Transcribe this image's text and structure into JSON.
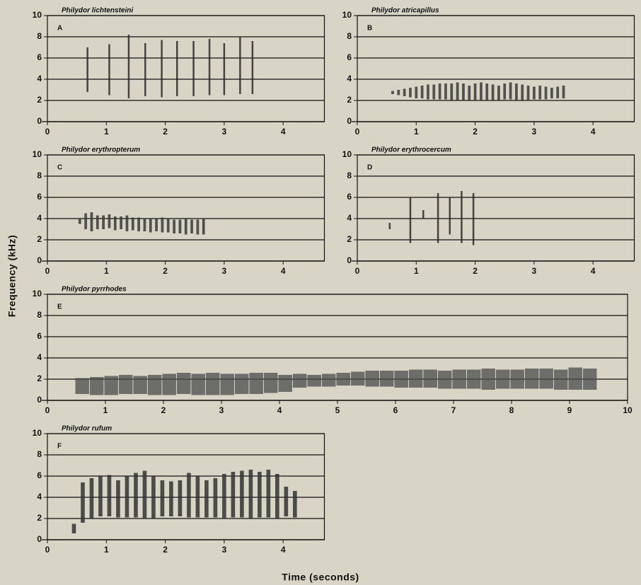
{
  "y_label": "Frequency (kHz)",
  "x_label": "Time (seconds)",
  "chart_data": [
    {
      "type": "spectrogram",
      "title": "Philydor lichtensteini",
      "label": "A",
      "color": "#2a2a2a",
      "x": [
        0.68,
        1.05,
        1.38,
        1.66,
        1.94,
        2.2,
        2.48,
        2.75,
        3.0,
        3.27,
        3.48
      ],
      "low": [
        2.8,
        2.5,
        2.2,
        2.4,
        2.3,
        2.4,
        2.4,
        2.5,
        2.5,
        2.6,
        2.6
      ],
      "high": [
        7.0,
        7.3,
        8.2,
        7.4,
        7.7,
        7.6,
        7.6,
        7.8,
        7.4,
        8.0,
        7.6
      ],
      "xlim": [
        0,
        4.7
      ],
      "ylim": [
        0,
        10
      ],
      "xticks": [
        0,
        1,
        2,
        3,
        4
      ],
      "yticks": [
        0,
        2,
        4,
        6,
        8,
        10
      ],
      "grid": true
    },
    {
      "type": "spectrogram",
      "title": "Philydor atricapillus",
      "label": "B",
      "color": "#3a3a3a",
      "x": [
        0.6,
        0.7,
        0.8,
        0.9,
        1.0,
        1.1,
        1.2,
        1.3,
        1.4,
        1.5,
        1.6,
        1.7,
        1.8,
        1.9,
        2.0,
        2.1,
        2.2,
        2.3,
        2.4,
        2.5,
        2.6,
        2.7,
        2.8,
        2.9,
        3.0,
        3.1,
        3.2,
        3.3,
        3.4,
        3.5
      ],
      "low": [
        2.6,
        2.5,
        2.4,
        2.3,
        2.2,
        2.2,
        2.1,
        2.1,
        2.1,
        2.1,
        2.0,
        2.0,
        2.0,
        2.0,
        2.0,
        2.0,
        2.0,
        2.0,
        2.0,
        2.1,
        2.1,
        2.0,
        2.0,
        2.0,
        2.1,
        2.1,
        2.1,
        2.2,
        2.2,
        2.2
      ],
      "high": [
        2.9,
        3.0,
        3.1,
        3.2,
        3.3,
        3.4,
        3.5,
        3.5,
        3.6,
        3.6,
        3.6,
        3.7,
        3.6,
        3.4,
        3.6,
        3.7,
        3.6,
        3.5,
        3.4,
        3.6,
        3.7,
        3.6,
        3.5,
        3.4,
        3.3,
        3.4,
        3.3,
        3.2,
        3.3,
        3.4
      ],
      "xlim": [
        0,
        4.7
      ],
      "ylim": [
        0,
        10
      ],
      "xticks": [
        0,
        1,
        2,
        3,
        4
      ],
      "yticks": [
        0,
        2,
        4,
        6,
        8,
        10
      ],
      "grid": true
    },
    {
      "type": "spectrogram",
      "title": "Philydor erythropterum",
      "label": "C",
      "color": "#3a3a3a",
      "x": [
        0.55,
        0.65,
        0.75,
        0.85,
        0.95,
        1.05,
        1.15,
        1.25,
        1.35,
        1.45,
        1.55,
        1.65,
        1.75,
        1.85,
        1.95,
        2.05,
        2.15,
        2.25,
        2.35,
        2.45,
        2.55,
        2.65
      ],
      "low": [
        3.5,
        3.0,
        2.8,
        3.0,
        3.0,
        3.1,
        2.9,
        3.0,
        2.8,
        2.9,
        2.8,
        2.8,
        2.7,
        2.8,
        2.7,
        2.7,
        2.6,
        2.6,
        2.5,
        2.6,
        2.5,
        2.5
      ],
      "high": [
        4.0,
        4.5,
        4.6,
        4.3,
        4.3,
        4.4,
        4.2,
        4.2,
        4.3,
        4.1,
        4.1,
        4.0,
        4.0,
        4.0,
        4.1,
        4.0,
        3.9,
        3.9,
        4.0,
        3.9,
        3.9,
        4.0
      ],
      "xlim": [
        0,
        4.7
      ],
      "ylim": [
        0,
        10
      ],
      "xticks": [
        0,
        1,
        2,
        3,
        4
      ],
      "yticks": [
        0,
        2,
        4,
        6,
        8,
        10
      ],
      "grid": true
    },
    {
      "type": "spectrogram",
      "title": "Philydor erythrocercum",
      "label": "D",
      "color": "#2a2a2a",
      "x": [
        0.55,
        0.9,
        1.12,
        1.37,
        1.57,
        1.77,
        1.97
      ],
      "low": [
        3.0,
        1.7,
        4.0,
        1.7,
        2.5,
        1.7,
        1.5
      ],
      "high": [
        3.6,
        6.0,
        4.8,
        6.4,
        6.0,
        6.6,
        6.4
      ],
      "xlim": [
        0,
        4.7
      ],
      "ylim": [
        0,
        10
      ],
      "xticks": [
        0,
        1,
        2,
        3,
        4
      ],
      "yticks": [
        0,
        2,
        4,
        6,
        8,
        10
      ],
      "grid": true
    },
    {
      "type": "spectrogram",
      "title": "Philydor pyrrhodes",
      "label": "E",
      "color": "#4a4a4a",
      "x": [
        0.6,
        0.85,
        1.1,
        1.35,
        1.6,
        1.85,
        2.1,
        2.35,
        2.6,
        2.85,
        3.1,
        3.35,
        3.6,
        3.85,
        4.1,
        4.35,
        4.6,
        4.85,
        5.1,
        5.35,
        5.6,
        5.85,
        6.1,
        6.35,
        6.6,
        6.85,
        7.1,
        7.35,
        7.6,
        7.85,
        8.1,
        8.35,
        8.6,
        8.85,
        9.1,
        9.35
      ],
      "low": [
        0.6,
        0.5,
        0.5,
        0.6,
        0.6,
        0.5,
        0.5,
        0.6,
        0.5,
        0.5,
        0.5,
        0.6,
        0.6,
        0.7,
        0.8,
        1.2,
        1.3,
        1.3,
        1.4,
        1.4,
        1.3,
        1.3,
        1.2,
        1.2,
        1.2,
        1.1,
        1.1,
        1.1,
        1.0,
        1.1,
        1.1,
        1.1,
        1.1,
        1.0,
        1.0,
        1.0
      ],
      "high": [
        2.1,
        2.2,
        2.3,
        2.4,
        2.3,
        2.4,
        2.5,
        2.6,
        2.5,
        2.6,
        2.5,
        2.5,
        2.6,
        2.6,
        2.4,
        2.5,
        2.4,
        2.5,
        2.6,
        2.7,
        2.8,
        2.8,
        2.8,
        2.9,
        2.9,
        2.8,
        2.9,
        2.9,
        3.0,
        2.9,
        2.9,
        3.0,
        3.0,
        2.9,
        3.1,
        3.0
      ],
      "xlim": [
        0,
        10
      ],
      "ylim": [
        0,
        10
      ],
      "xticks": [
        0,
        1,
        2,
        3,
        4,
        5,
        6,
        7,
        8,
        9,
        10
      ],
      "yticks": [
        0,
        2,
        4,
        6,
        8,
        10
      ],
      "grid": true
    },
    {
      "type": "spectrogram",
      "title": "Philydor rufum",
      "label": "F",
      "color": "#333333",
      "x": [
        0.45,
        0.6,
        0.75,
        0.9,
        1.05,
        1.2,
        1.35,
        1.5,
        1.65,
        1.8,
        1.95,
        2.1,
        2.25,
        2.4,
        2.55,
        2.7,
        2.85,
        3.0,
        3.15,
        3.3,
        3.45,
        3.6,
        3.75,
        3.9,
        4.05,
        4.2
      ],
      "low": [
        0.6,
        1.6,
        2.0,
        2.2,
        2.2,
        2.1,
        2.1,
        2.1,
        2.0,
        2.0,
        2.2,
        2.2,
        2.2,
        2.1,
        2.1,
        2.1,
        2.1,
        2.0,
        2.1,
        2.1,
        2.0,
        2.1,
        2.1,
        2.0,
        2.2,
        2.1
      ],
      "high": [
        1.5,
        5.4,
        5.8,
        6.0,
        6.1,
        5.6,
        6.0,
        6.3,
        6.5,
        6.0,
        5.6,
        5.5,
        5.6,
        6.3,
        6.0,
        5.6,
        5.8,
        6.2,
        6.4,
        6.5,
        6.6,
        6.4,
        6.6,
        6.2,
        5.0,
        4.6
      ],
      "xlim": [
        0,
        4.7
      ],
      "ylim": [
        0,
        10
      ],
      "xticks": [
        0,
        1,
        2,
        3,
        4
      ],
      "yticks": [
        0,
        2,
        4,
        6,
        8,
        10
      ],
      "grid": true
    }
  ]
}
